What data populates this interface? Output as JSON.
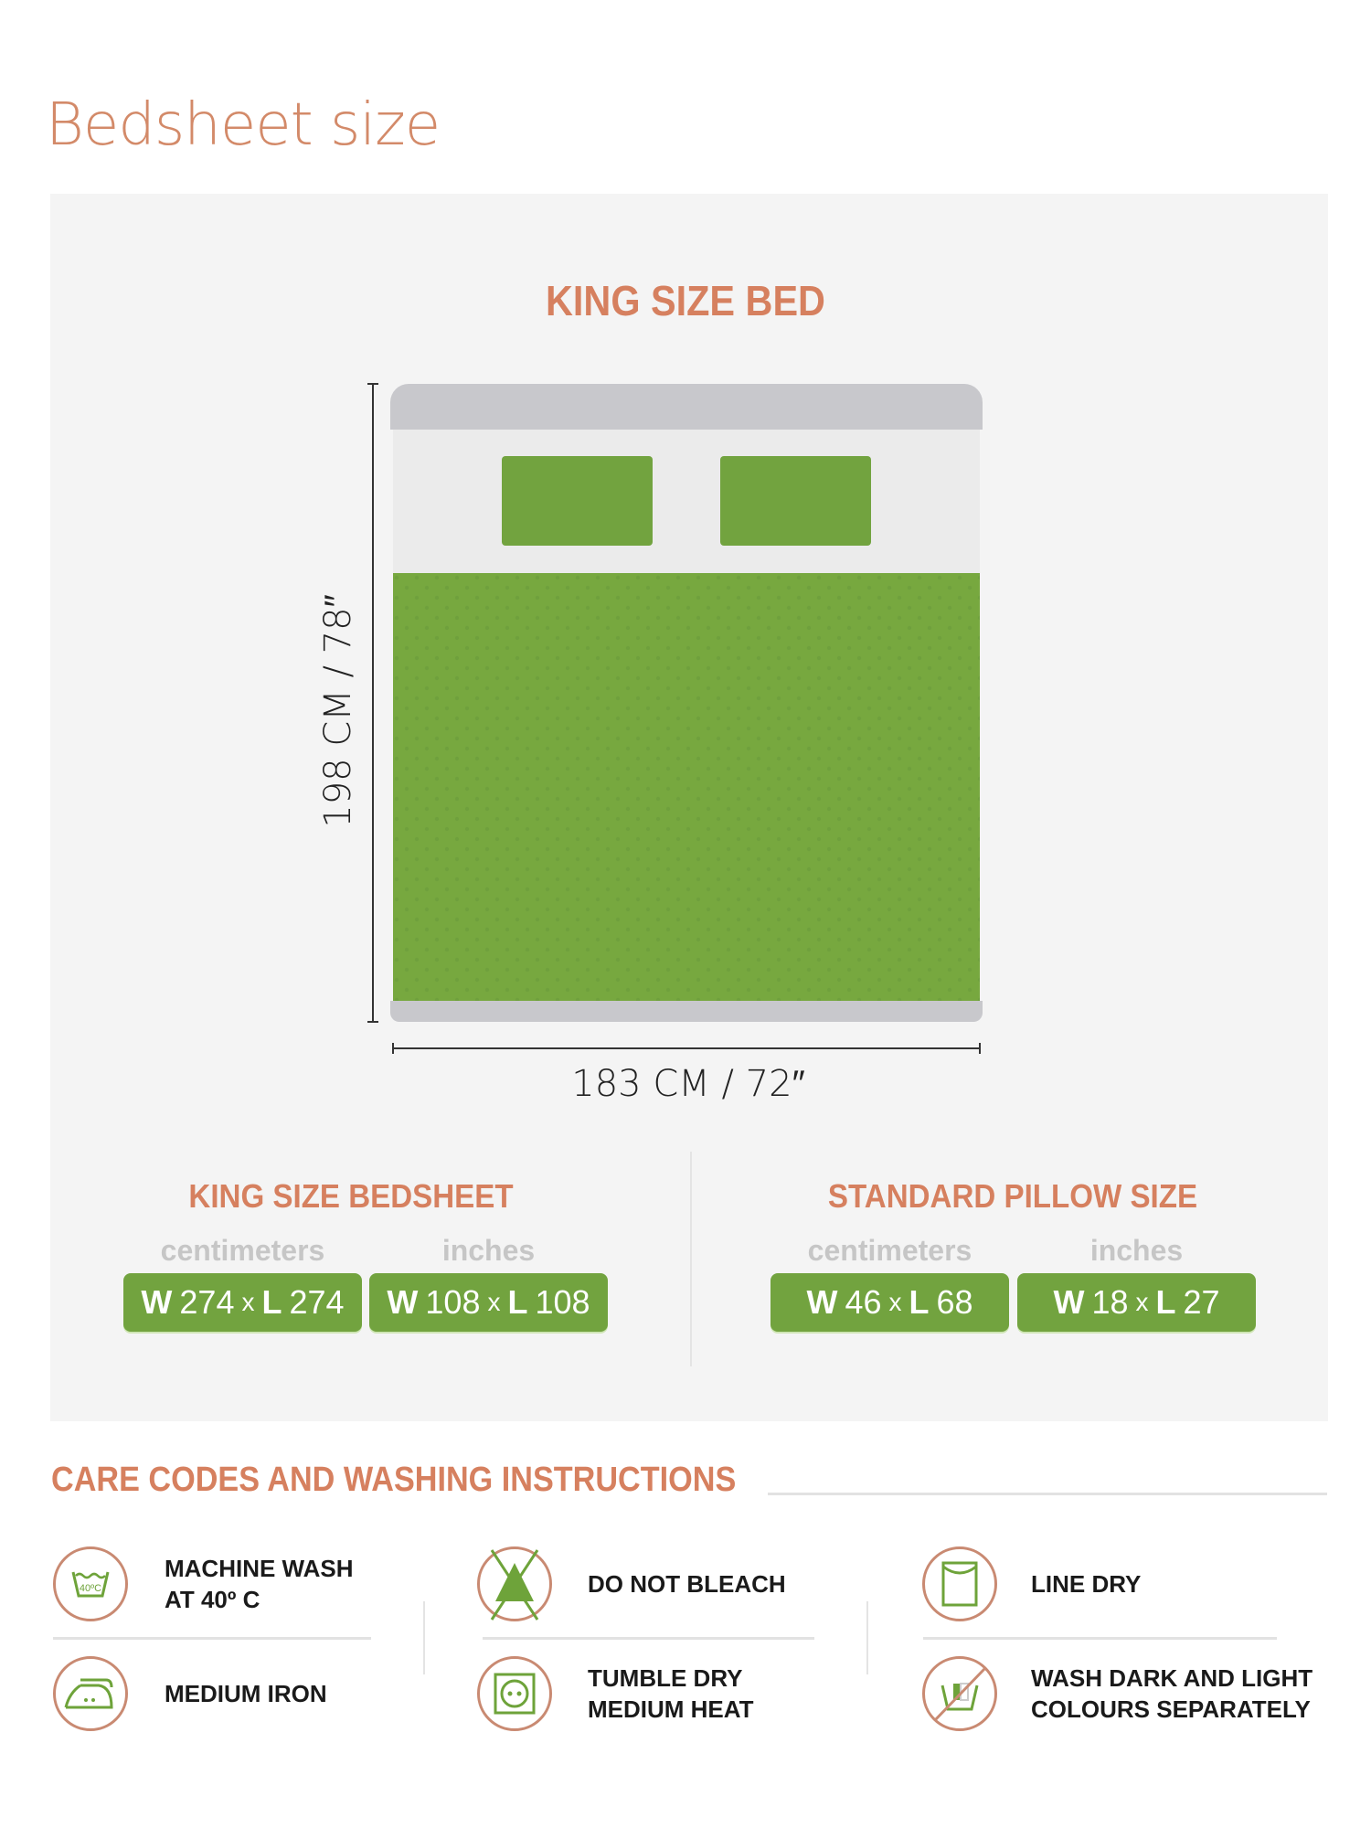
{
  "title": "Bedsheet size",
  "bed": {
    "title": "KING SIZE BED",
    "length_label": "198 CM / 78″",
    "width_label": "183 CM / 72″",
    "colors": {
      "green": "#72a33f",
      "headboard": "#c8c8cc"
    }
  },
  "sizes": [
    {
      "heading": "KING SIZE BEDSHEET",
      "units": [
        {
          "label": "centimeters",
          "w_letter": "W",
          "w": "274",
          "x": "x",
          "l_letter": "L",
          "l": "274"
        },
        {
          "label": "inches",
          "w_letter": "W",
          "w": "108",
          "x": "x",
          "l_letter": "L",
          "l": "108"
        }
      ]
    },
    {
      "heading": "STANDARD PILLOW SIZE",
      "units": [
        {
          "label": "centimeters",
          "w_letter": "W",
          "w": "46",
          "x": "x",
          "l_letter": "L",
          "l": "68"
        },
        {
          "label": "inches",
          "w_letter": "W",
          "w": "18",
          "x": "x",
          "l_letter": "L",
          "l": "27"
        }
      ]
    }
  ],
  "care": {
    "heading": "CARE CODES AND WASHING INSTRUCTIONS",
    "items": [
      {
        "icon": "machine-wash-40-icon",
        "line1": "MACHINE WASH",
        "line2": "AT 40º C",
        "icon_text": "40ºC"
      },
      {
        "icon": "medium-iron-icon",
        "line1": "MEDIUM IRON",
        "line2": ""
      },
      {
        "icon": "do-not-bleach-icon",
        "line1": "DO NOT BLEACH",
        "line2": ""
      },
      {
        "icon": "tumble-dry-medium-icon",
        "line1": "TUMBLE DRY",
        "line2": "MEDIUM HEAT"
      },
      {
        "icon": "line-dry-icon",
        "line1": "LINE DRY",
        "line2": ""
      },
      {
        "icon": "wash-separately-icon",
        "line1": "WASH DARK AND LIGHT",
        "line2": "COLOURS SEPARATELY"
      }
    ]
  }
}
